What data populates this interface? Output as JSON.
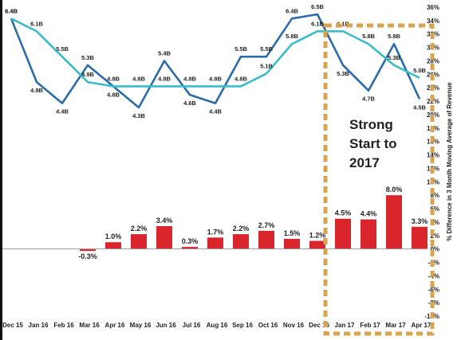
{
  "chart_data": {
    "type": "bar",
    "categories": [
      "Dec 15",
      "Jan 16",
      "Feb 16",
      "Mar 16",
      "Apr 16",
      "May 16",
      "Jun 16",
      "Jul 16",
      "Aug 16",
      "Sep 16",
      "Oct 16",
      "Nov 16",
      "Dec 16",
      "Jan 17",
      "Feb 17",
      "Mar 17",
      "Apr 17"
    ],
    "bars": {
      "color": "#d9262c",
      "values": [
        0,
        0,
        0,
        -0.3,
        1.0,
        2.2,
        3.4,
        0.3,
        1.7,
        2.2,
        2.7,
        1.5,
        1.2,
        4.5,
        4.4,
        8.0,
        3.3
      ],
      "labels": [
        "",
        "",
        "",
        "-0.3%",
        "1.0%",
        "2.2%",
        "3.4%",
        "0.3%",
        "1.7%",
        "2.2%",
        "2.7%",
        "1.5%",
        "1.2%",
        "4.5%",
        "4.4%",
        "8.0%",
        "3.3%"
      ]
    },
    "series": [
      {
        "color": "#2b6ca8",
        "values": [
          6.4,
          4.9,
          4.4,
          5.3,
          4.8,
          4.3,
          5.4,
          4.6,
          4.4,
          5.5,
          5.5,
          6.4,
          6.5,
          5.3,
          4.7,
          5.8,
          4.5
        ],
        "labels": [
          "6.4B",
          "4.9B",
          "4.4B",
          "5.3B",
          "4.8B",
          "4.3B",
          "5.4B",
          "4.6B",
          "4.4B",
          "5.5B",
          "5.5B",
          "6.4B",
          "6.5B",
          "5.3B",
          "4.7B",
          "5.8B",
          "4.5B"
        ]
      },
      {
        "color": "#3bbcc9",
        "values": [
          6.4,
          6.1,
          5.5,
          4.9,
          4.8,
          4.8,
          4.8,
          4.8,
          4.8,
          4.8,
          5.1,
          5.8,
          6.1,
          6.1,
          5.8,
          5.3,
          5.0
        ],
        "labels": [
          "6.4B",
          "6.1B",
          "5.5B",
          "4.9B",
          "4.8B",
          "4.8B",
          "4.8B",
          "4.8B",
          "4.8B",
          "4.8B",
          "5.1B",
          "5.8B",
          "6.1B",
          "6.1B",
          "5.8B",
          "5.3B",
          "5.0B"
        ]
      }
    ],
    "ylabel": "% Difference in 3 Month Moving Average of Revenue",
    "ylim": [
      -10,
      36
    ],
    "yticks": [
      "36%",
      "34%",
      "32%",
      "30%",
      "28%",
      "26%",
      "24%",
      "22%",
      "20%",
      "18%",
      "16%",
      "14%",
      "12%",
      "10%",
      "8%",
      "6%",
      "4%",
      "2%",
      "0%",
      "-2%",
      "-4%",
      "-6%",
      "-8%",
      "-10%"
    ],
    "highlight": {
      "label": "Strong Start to 2017",
      "lines": [
        "Strong",
        "Start to",
        "2017"
      ],
      "from": "Jan 17",
      "to": "Apr 17",
      "color": "#d9a450"
    }
  }
}
